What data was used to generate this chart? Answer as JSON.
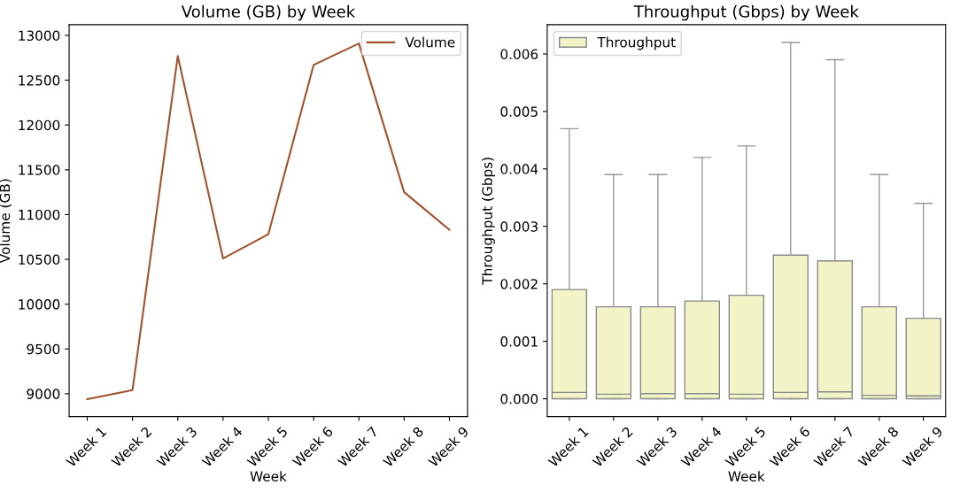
{
  "chart_data": [
    {
      "type": "line",
      "title": "Volume (GB) by Week",
      "xlabel": "Week",
      "ylabel": "Volume (GB)",
      "categories": [
        "Week 1",
        "Week 2",
        "Week 3",
        "Week 4",
        "Week 5",
        "Week 6",
        "Week 7",
        "Week 8",
        "Week 9"
      ],
      "series": [
        {
          "name": "Volume",
          "color": "#a0522d",
          "values": [
            8940,
            9040,
            12770,
            10510,
            10780,
            12670,
            12910,
            11250,
            10830
          ]
        }
      ],
      "ylim": [
        8745,
        13120
      ],
      "yticks": [
        9000,
        9500,
        10000,
        10500,
        11000,
        11500,
        12000,
        12500,
        13000
      ],
      "legend": "top right",
      "grid": false
    },
    {
      "type": "box",
      "title": "Throughput (Gbps) by Week",
      "xlabel": "Week",
      "ylabel": "Throughput (Gbps)",
      "categories": [
        "Week 1",
        "Week 2",
        "Week 3",
        "Week 4",
        "Week 5",
        "Week 6",
        "Week 7",
        "Week 8",
        "Week 9"
      ],
      "series": [
        {
          "name": "Throughput",
          "color": "#f2f4c8",
          "boxes": [
            {
              "low": 0,
              "q1": 0,
              "median": 0.00011,
              "q3": 0.0019,
              "high": 0.0047
            },
            {
              "low": 0,
              "q1": 0,
              "median": 8e-05,
              "q3": 0.0016,
              "high": 0.0039
            },
            {
              "low": 0,
              "q1": 0,
              "median": 9e-05,
              "q3": 0.0016,
              "high": 0.0039
            },
            {
              "low": 0,
              "q1": 0,
              "median": 9e-05,
              "q3": 0.0017,
              "high": 0.0042
            },
            {
              "low": 0,
              "q1": 0,
              "median": 8e-05,
              "q3": 0.0018,
              "high": 0.0044
            },
            {
              "low": 0,
              "q1": 0,
              "median": 0.00011,
              "q3": 0.0025,
              "high": 0.0062
            },
            {
              "low": 0,
              "q1": 0,
              "median": 0.00012,
              "q3": 0.0024,
              "high": 0.0059
            },
            {
              "low": 0,
              "q1": 0,
              "median": 6e-05,
              "q3": 0.0016,
              "high": 0.0039
            },
            {
              "low": 0,
              "q1": 0,
              "median": 5e-05,
              "q3": 0.0014,
              "high": 0.0034
            }
          ]
        }
      ],
      "ylim": [
        -0.00031,
        0.00651
      ],
      "yticks": [
        {
          "value": 0,
          "label": "0.000"
        },
        {
          "value": 0.001,
          "label": "0.001"
        },
        {
          "value": 0.002,
          "label": "0.002"
        },
        {
          "value": 0.003,
          "label": "0.003"
        },
        {
          "value": 0.004,
          "label": "0.004"
        },
        {
          "value": 0.005,
          "label": "0.005"
        },
        {
          "value": 0.006,
          "label": "0.006"
        }
      ],
      "legend": "top left",
      "grid": false
    }
  ]
}
